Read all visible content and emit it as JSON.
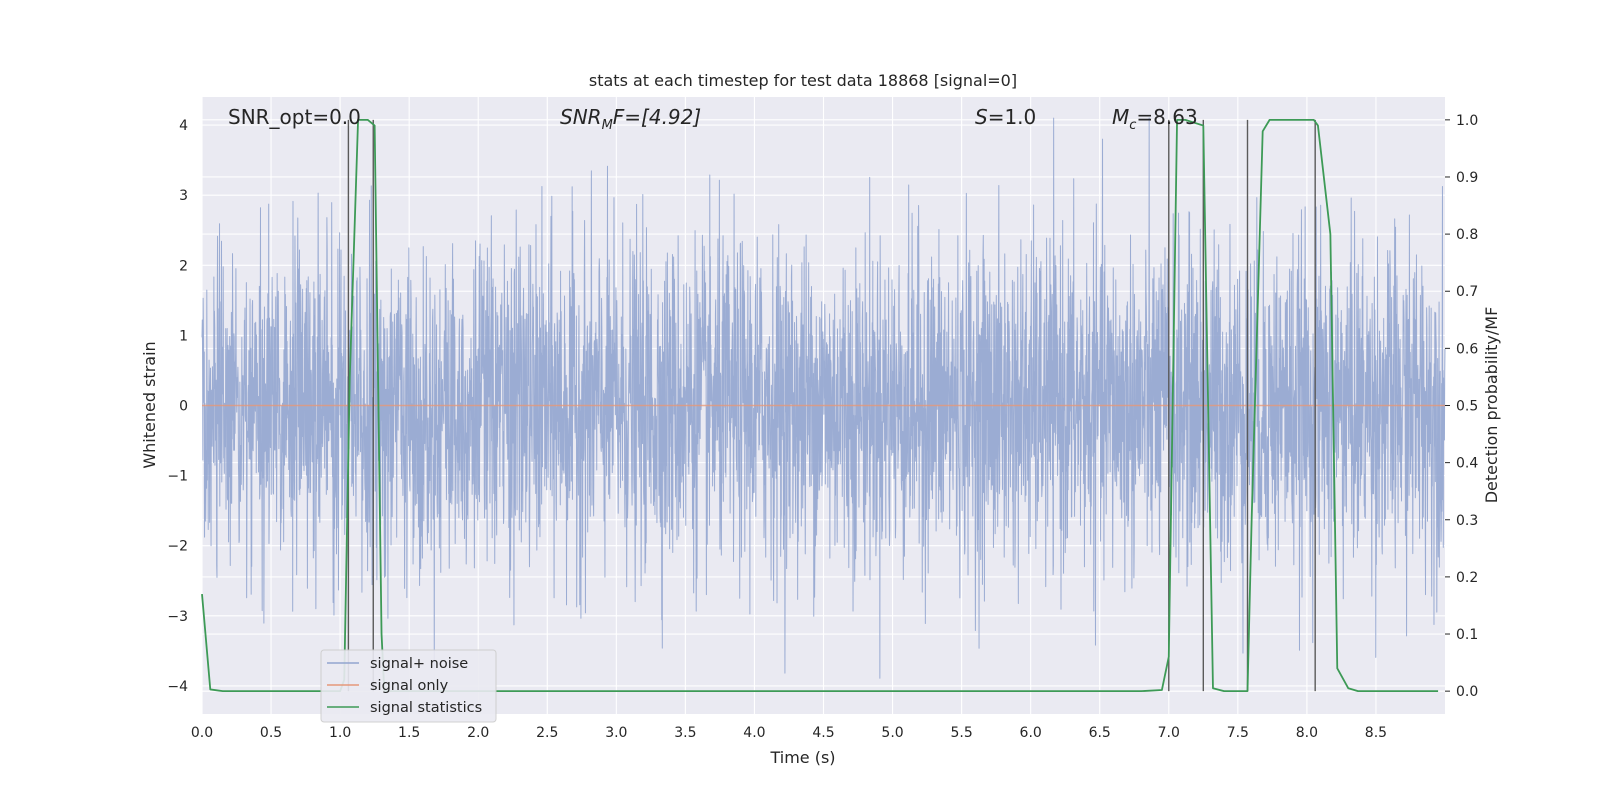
{
  "chart_data": {
    "type": "line",
    "title": "stats at each timestep for test data 18868 [signal=0]",
    "xlabel": "Time (s)",
    "ylabel_left": "Whitened strain",
    "ylabel_right": "Detection probability/MF",
    "xlim": [
      0,
      9.0
    ],
    "ylim_left": [
      -4.4,
      4.4
    ],
    "ylim_right": [
      -0.04,
      1.04
    ],
    "x_ticks": [
      "0.0",
      "0.5",
      "1.0",
      "1.5",
      "2.0",
      "2.5",
      "3.0",
      "3.5",
      "4.0",
      "4.5",
      "5.0",
      "5.5",
      "6.0",
      "6.5",
      "7.0",
      "7.5",
      "8.0",
      "8.5"
    ],
    "y_left_ticks": [
      "−4",
      "−3",
      "−2",
      "−1",
      "0",
      "1",
      "2",
      "3",
      "4"
    ],
    "y_right_ticks": [
      "0.0",
      "0.1",
      "0.2",
      "0.3",
      "0.4",
      "0.5",
      "0.6",
      "0.7",
      "0.8",
      "0.9",
      "1.0"
    ],
    "grid": true,
    "legend_position": "lower-left",
    "annotations": {
      "snr_opt": "SNR_opt=0.0",
      "snr_mf_main": "SNR",
      "snr_mf_sub": "M",
      "snr_mf_rest": "F=[4.92]",
      "s_main": "S",
      "s_rest": "=1.0",
      "mc_main": "M",
      "mc_sub": "c",
      "mc_rest": "=8.63"
    },
    "series": [
      {
        "name": "signal+ noise",
        "color": "#92a5cf",
        "axis": "left",
        "description_of_values": "whitened strain noise, approx. Gaussian, amplitude mostly within ±2.5, extremes about ±4"
      },
      {
        "name": "signal only",
        "color": "#e5987a",
        "axis": "left",
        "values_constant": 0.0
      },
      {
        "name": "signal statistics",
        "color": "#3d9a56",
        "axis": "right",
        "x": [
          0.0,
          0.06,
          0.15,
          0.9,
          1.0,
          1.03,
          1.07,
          1.13,
          1.2,
          1.25,
          1.3,
          1.32,
          1.5,
          6.8,
          6.95,
          7.0,
          7.06,
          7.12,
          7.25,
          7.32,
          7.4,
          7.5,
          7.57,
          7.6,
          7.68,
          7.73,
          8.05,
          8.08,
          8.17,
          8.22,
          8.3,
          8.37,
          8.5,
          8.95
        ],
        "values": [
          0.17,
          0.003,
          0.0,
          0.0,
          0.0,
          0.02,
          0.55,
          1.0,
          1.0,
          0.99,
          0.1,
          0.0,
          0.0,
          0.0,
          0.002,
          0.06,
          1.0,
          1.0,
          0.99,
          0.005,
          0.0,
          0.0,
          0.0,
          0.3,
          0.98,
          1.0,
          1.0,
          0.99,
          0.8,
          0.04,
          0.005,
          0.0,
          0.0,
          0.0
        ]
      }
    ],
    "vertical_markers_x": [
      1.06,
      1.24,
      7.0,
      7.25,
      7.57,
      8.06
    ]
  }
}
